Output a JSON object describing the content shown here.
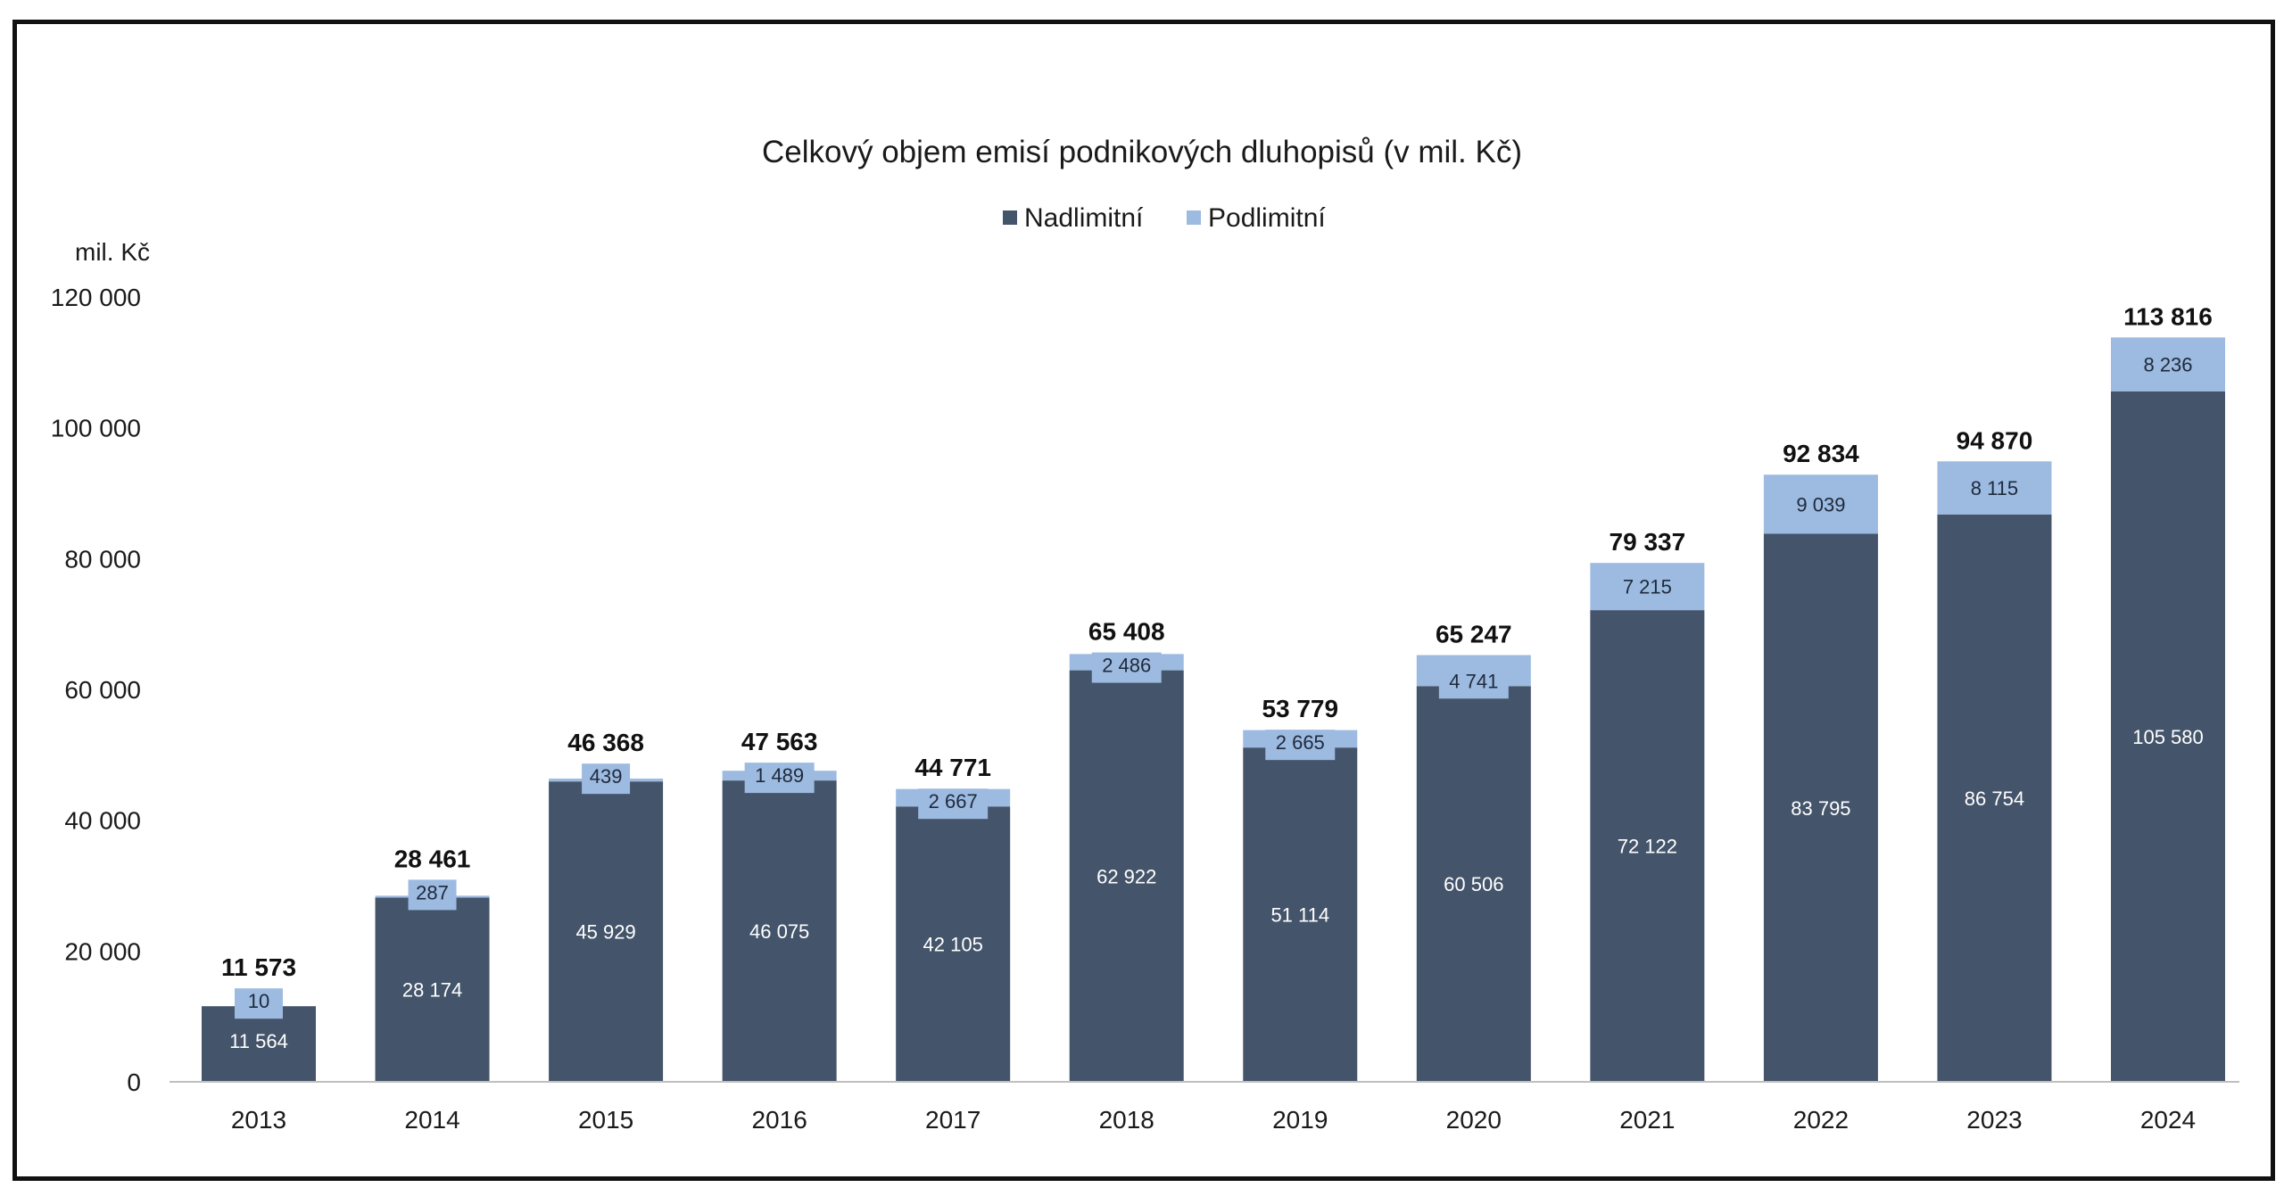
{
  "chart_data": {
    "type": "bar",
    "stacked": true,
    "title": "Celkový objem emisí podnikových dluhopisů (v mil. Kč)",
    "ylabel": "mil. Kč",
    "xlabel": "",
    "ylim": [
      0,
      120000
    ],
    "yticks": [
      0,
      20000,
      40000,
      60000,
      80000,
      100000,
      120000
    ],
    "ytick_labels": [
      "0",
      "20 000",
      "40 000",
      "60 000",
      "80 000",
      "100 000",
      "120 000"
    ],
    "legend_position": "top-center",
    "grid": false,
    "categories": [
      "2013",
      "2014",
      "2015",
      "2016",
      "2017",
      "2018",
      "2019",
      "2020",
      "2021",
      "2022",
      "2023",
      "2024"
    ],
    "series": [
      {
        "name": "Nadlimitní",
        "color": "#44546a",
        "values": [
          11564,
          28174,
          45929,
          46075,
          42105,
          62922,
          51114,
          60506,
          72122,
          83795,
          86754,
          105580
        ],
        "labels": [
          "11 564",
          "28 174",
          "45 929",
          "46 075",
          "42 105",
          "62 922",
          "51 114",
          "60 506",
          "72 122",
          "83 795",
          "86 754",
          "105 580"
        ]
      },
      {
        "name": "Podlimitní",
        "color": "#9dbae0",
        "values": [
          10,
          287,
          439,
          1489,
          2667,
          2486,
          2665,
          4741,
          7215,
          9039,
          8115,
          8236
        ],
        "labels": [
          "10",
          "287",
          "439",
          "1 489",
          "2 667",
          "2 486",
          "2 665",
          "4 741",
          "7 215",
          "9 039",
          "8 115",
          "8 236"
        ]
      }
    ],
    "totals": [
      11573,
      28461,
      46368,
      47563,
      44771,
      65408,
      53779,
      65247,
      79337,
      92834,
      94870,
      113816
    ],
    "total_labels": [
      "11 573",
      "28 461",
      "46 368",
      "47 563",
      "44 771",
      "65 408",
      "53 779",
      "65 247",
      "79 337",
      "92 834",
      "94 870",
      "113 816"
    ]
  }
}
